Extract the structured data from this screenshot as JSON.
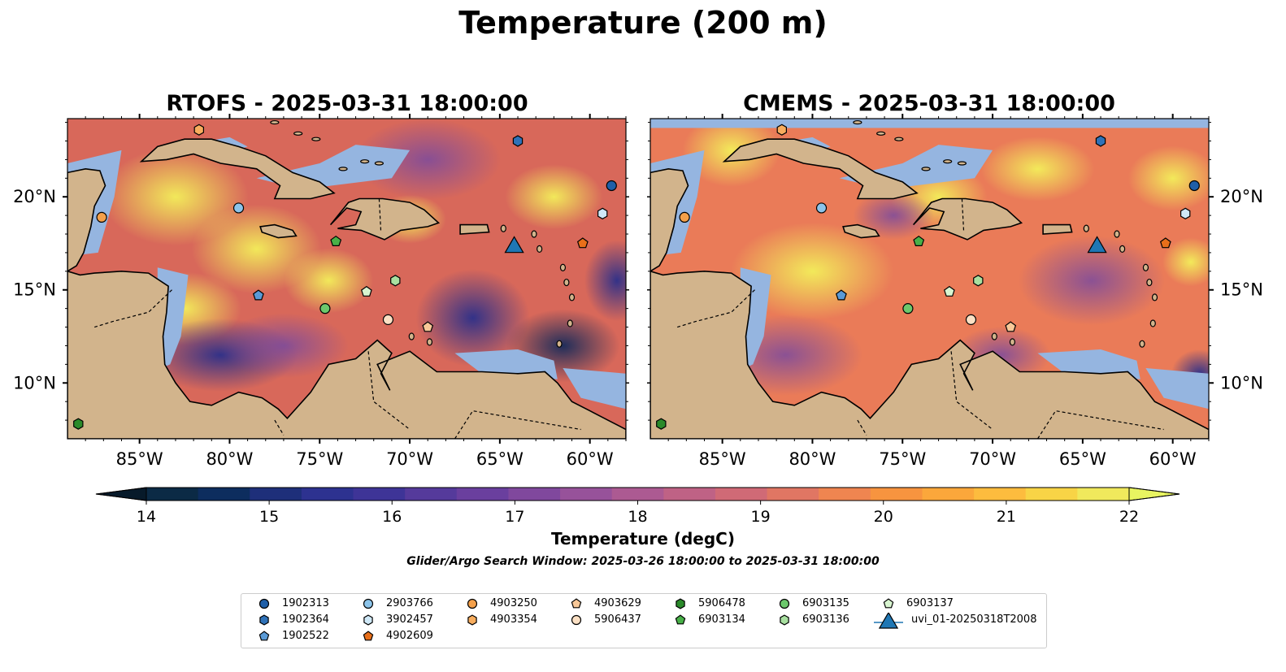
{
  "title": "Temperature (200 m)",
  "panels": [
    {
      "title": "RTOFS - 2025-03-31 18:00:00"
    },
    {
      "title": "CMEMS - 2025-03-31 18:00:00"
    }
  ],
  "axes": {
    "lon_ticks": [
      "85°W",
      "80°W",
      "75°W",
      "70°W",
      "65°W",
      "60°W"
    ],
    "lat_ticks": [
      "20°N",
      "15°N",
      "10°N"
    ]
  },
  "colorbar": {
    "label": "Temperature (degC)",
    "ticks": [
      "14",
      "15",
      "16",
      "17",
      "18",
      "19",
      "20",
      "21",
      "22"
    ],
    "colors": [
      "#0b2a45",
      "#0d2d5e",
      "#1e2f7a",
      "#2d3290",
      "#3e3497",
      "#553a9b",
      "#6a3f9e",
      "#80489d",
      "#97529a",
      "#ac5a92",
      "#bf6285",
      "#d06a76",
      "#e07663",
      "#ef8550",
      "#f7943f",
      "#fba73b",
      "#fdbc3e",
      "#f8d446",
      "#f0e95c"
    ],
    "under_color": "#071a2a",
    "over_color": "#e8f461"
  },
  "search_window": "Glider/Argo Search Window: 2025-03-26 18:00:00 to 2025-03-31 18:00:00",
  "colors": {
    "land": "#d2b48c",
    "shelf": "#95b5e0",
    "deep_ocean": "#062133"
  },
  "legend": [
    {
      "label": "1902313",
      "marker": "circle",
      "color": "#1f5fa8"
    },
    {
      "label": "1902364",
      "marker": "hexagon",
      "color": "#2f72b8"
    },
    {
      "label": "1902522",
      "marker": "pentagon",
      "color": "#5a9ad6"
    },
    {
      "label": "2903766",
      "marker": "circle",
      "color": "#8cc4ea"
    },
    {
      "label": "3902457",
      "marker": "hexagon",
      "color": "#cfe8f7"
    },
    {
      "label": "4902609",
      "marker": "pentagon",
      "color": "#e86f1a"
    },
    {
      "label": "4903250",
      "marker": "circle",
      "color": "#f4a04a"
    },
    {
      "label": "4903354",
      "marker": "hexagon",
      "color": "#f8ad5e"
    },
    {
      "label": "4903629",
      "marker": "pentagon",
      "color": "#f8c898"
    },
    {
      "label": "5906437",
      "marker": "circle",
      "color": "#fbe0c4"
    },
    {
      "label": "5906478",
      "marker": "hexagon",
      "color": "#2a8a2a"
    },
    {
      "label": "6903134",
      "marker": "pentagon",
      "color": "#48b048"
    },
    {
      "label": "6903135",
      "marker": "circle",
      "color": "#6cc86c"
    },
    {
      "label": "6903136",
      "marker": "hexagon",
      "color": "#a8e0a0"
    },
    {
      "label": "6903137",
      "marker": "pentagon",
      "color": "#d8f5d0"
    },
    {
      "label": "uvi_01-20250318T2008",
      "marker": "triangle",
      "color": "#1f77b4"
    }
  ],
  "floats": [
    {
      "id": "1902313",
      "lon": -58.8,
      "lat": 20.6
    },
    {
      "id": "1902364",
      "lon": -64.0,
      "lat": 23.0
    },
    {
      "id": "1902522",
      "lon": -78.4,
      "lat": 14.7
    },
    {
      "id": "2903766",
      "lon": -79.5,
      "lat": 19.4
    },
    {
      "id": "3902457",
      "lon": -59.3,
      "lat": 19.1
    },
    {
      "id": "4902609",
      "lon": -60.4,
      "lat": 17.5
    },
    {
      "id": "4903250",
      "lon": -87.1,
      "lat": 18.9
    },
    {
      "id": "4903354",
      "lon": -81.7,
      "lat": 23.6
    },
    {
      "id": "4903629",
      "lon": -69.0,
      "lat": 13.0
    },
    {
      "id": "5906437",
      "lon": -71.2,
      "lat": 13.4
    },
    {
      "id": "5906478",
      "lon": -88.4,
      "lat": 7.8
    },
    {
      "id": "6903134",
      "lon": -74.1,
      "lat": 17.6
    },
    {
      "id": "6903135",
      "lon": -74.7,
      "lat": 14.0
    },
    {
      "id": "6903136",
      "lon": -70.8,
      "lat": 15.5
    },
    {
      "id": "6903137",
      "lon": -72.4,
      "lat": 14.9
    },
    {
      "id": "uvi_01-20250318T2008",
      "lon": -64.2,
      "lat": 17.4
    }
  ]
}
